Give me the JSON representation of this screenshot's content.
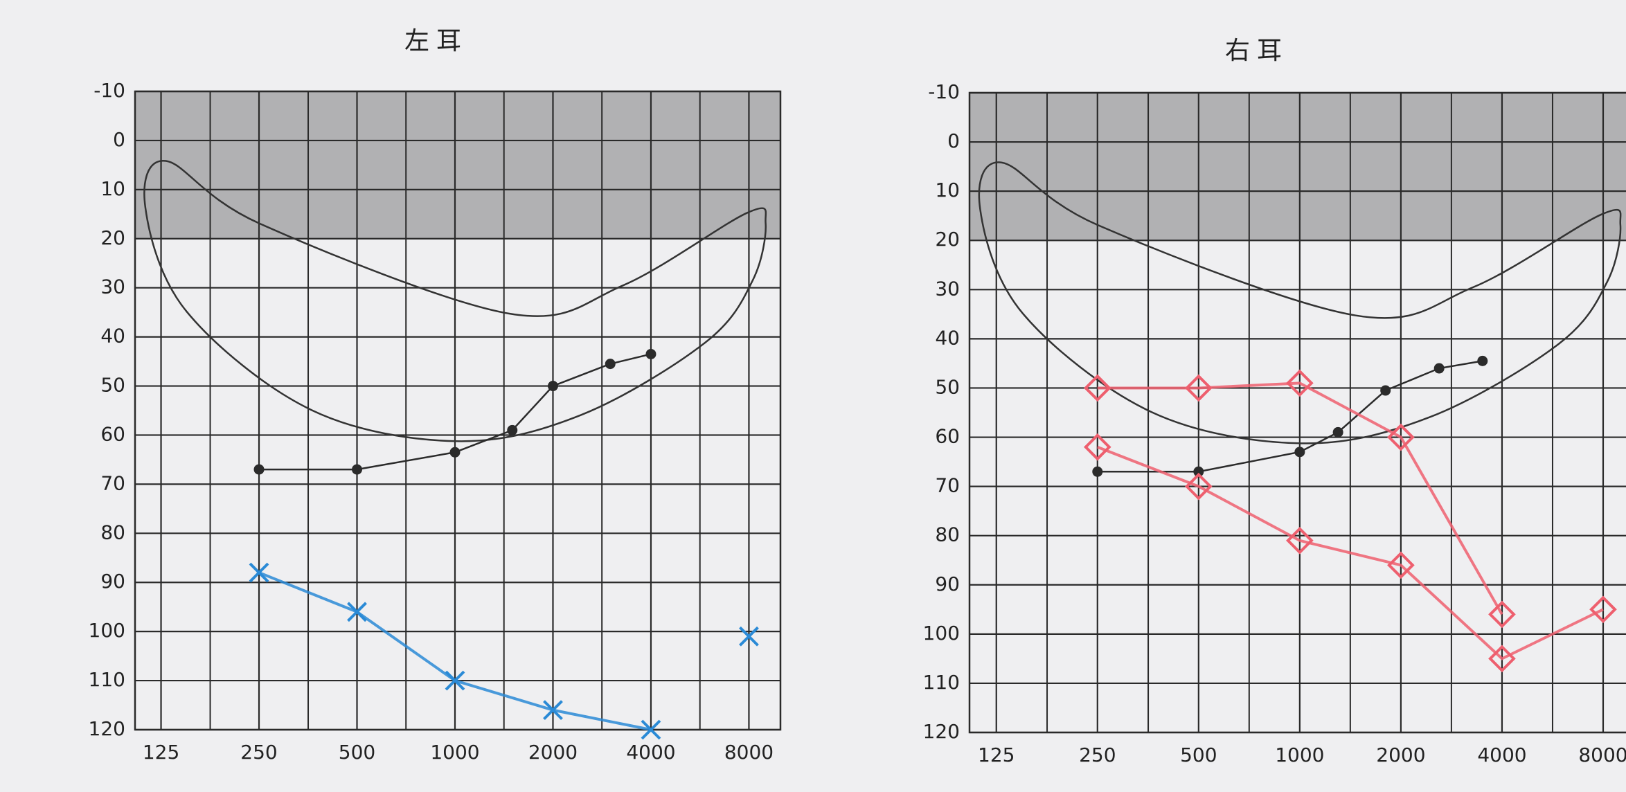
{
  "chart_data": [
    {
      "type": "line",
      "title": "左耳",
      "xscale": "log",
      "xlim": [
        104,
        10000
      ],
      "xticks": [
        125,
        250,
        500,
        1000,
        2000,
        4000,
        8000
      ],
      "xminor": [
        177,
        354,
        707,
        1414,
        2828,
        5657
      ],
      "ylim": [
        -10,
        120
      ],
      "y_inverted": true,
      "yticks": [
        -10,
        0,
        10,
        20,
        30,
        40,
        50,
        60,
        70,
        80,
        90,
        100,
        110,
        120
      ],
      "shade": [
        -10,
        20
      ],
      "grid": true,
      "series": [
        {
          "color": "#2b2b2b",
          "marker": "dot",
          "x": [
            250,
            500,
            1000,
            1500,
            2000,
            3000,
            4000
          ],
          "values": [
            67,
            67,
            63.5,
            59,
            50,
            45.5,
            43.5
          ]
        },
        {
          "color": "#2a8ad6",
          "marker": "x",
          "x": [
            250,
            500,
            1000,
            2000,
            4000
          ],
          "values": [
            88,
            96,
            110,
            116,
            120
          ]
        },
        {
          "color": "#2a8ad6",
          "marker": "x",
          "x": [
            8000
          ],
          "values": [
            101
          ]
        }
      ]
    },
    {
      "type": "line",
      "title": "右耳",
      "xscale": "log",
      "xlim": [
        104,
        10000
      ],
      "xticks": [
        125,
        250,
        500,
        1000,
        2000,
        4000,
        8000
      ],
      "xminor": [
        177,
        354,
        707,
        1414,
        2828,
        5657
      ],
      "ylim": [
        -10,
        120
      ],
      "y_inverted": true,
      "yticks": [
        -10,
        0,
        10,
        20,
        30,
        40,
        50,
        60,
        70,
        80,
        90,
        100,
        110,
        120
      ],
      "shade": [
        -10,
        20
      ],
      "grid": true,
      "series": [
        {
          "color": "#2b2b2b",
          "marker": "dot",
          "x": [
            250,
            500,
            1000,
            1300,
            1800,
            2600,
            3500
          ],
          "values": [
            67,
            67,
            63,
            59,
            50.5,
            46,
            44.5
          ]
        },
        {
          "color": "#ee5f6e",
          "marker": "diamond",
          "x": [
            250,
            500,
            1000,
            2000,
            4000
          ],
          "values": [
            50,
            50,
            49,
            60,
            96
          ]
        },
        {
          "color": "#ee5f6e",
          "marker": "diamond",
          "x": [
            250,
            500,
            1000,
            2000,
            4000,
            8000
          ],
          "values": [
            62,
            70,
            81,
            86,
            105,
            95
          ]
        }
      ]
    }
  ]
}
